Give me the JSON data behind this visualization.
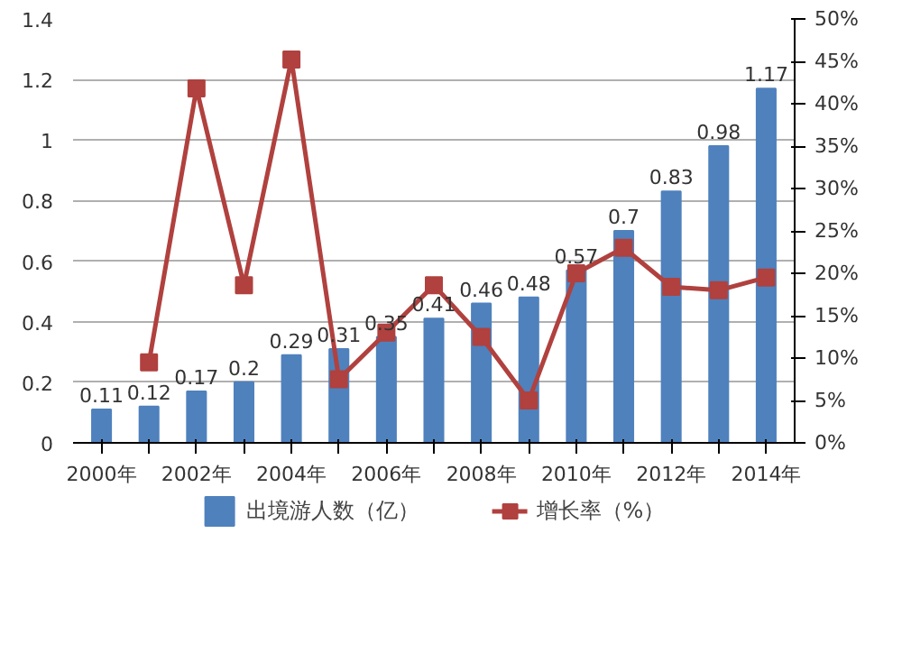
{
  "chart_data": {
    "type": "bar",
    "categories": [
      "2000年",
      null,
      "2002年",
      null,
      "2004年",
      null,
      "2006年",
      null,
      "2008年",
      null,
      "2010年",
      null,
      "2012年",
      null,
      "2014年"
    ],
    "series": [
      {
        "name": "出境游人数（亿）",
        "color": "#4f81bd",
        "values": [
          0.11,
          0.12,
          0.17,
          0.2,
          0.29,
          0.31,
          0.35,
          0.41,
          0.46,
          0.48,
          0.57,
          0.7,
          0.83,
          0.98,
          1.17
        ],
        "value_labels": [
          "0.11",
          "0.12",
          "0.17",
          "0.2",
          "0.29",
          "0.31",
          "0.35",
          "0.41",
          "0.46",
          "0.48",
          "0.57",
          "0.7",
          "0.83",
          "0.98",
          "1.17"
        ]
      },
      {
        "name": "增长率（%）",
        "type": "line",
        "axis": "y2",
        "color": "#b0413e",
        "marker": "square",
        "values": [
          null,
          9.5,
          41.8,
          18.6,
          45.2,
          7.5,
          13,
          18.6,
          12.5,
          5,
          20,
          23,
          18.4,
          18,
          19.5
        ]
      }
    ],
    "ylim": [
      0,
      1.4
    ],
    "yticks": [
      0,
      0.2,
      0.4,
      0.6,
      0.8,
      1,
      1.2,
      1.4
    ],
    "y2lim": [
      0,
      50
    ],
    "y2ticks": [
      {
        "value": 0,
        "label": "0%"
      },
      {
        "value": 5,
        "label": "5%"
      },
      {
        "value": 10,
        "label": "10%"
      },
      {
        "value": 15,
        "label": "15%"
      },
      {
        "value": 20,
        "label": "20%"
      },
      {
        "value": 25,
        "label": "25%"
      },
      {
        "value": 30,
        "label": "30%"
      },
      {
        "value": 35,
        "label": "35%"
      },
      {
        "value": 40,
        "label": "40%"
      },
      {
        "value": 45,
        "label": "45%"
      },
      {
        "value": 50,
        "label": "50%"
      }
    ],
    "grid": "y",
    "legend": "bottom"
  }
}
